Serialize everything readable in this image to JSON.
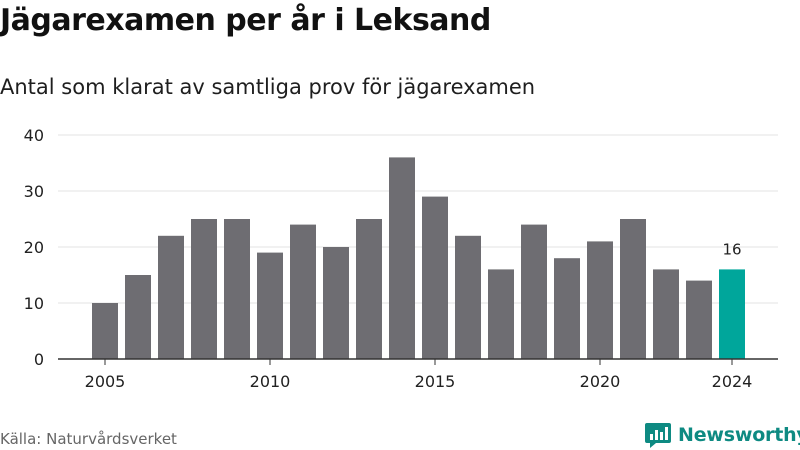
{
  "title": "Jägarexamen per år i Leksand",
  "subtitle": "Antal som klarat av samtliga prov för jägarexamen",
  "source": "Källa: Naturvårdsverket",
  "brand": {
    "name": "Newsworthy"
  },
  "colors": {
    "bar": "#6e6d72",
    "highlight": "#00a69b",
    "grid": "#e3e3e3",
    "axis": "#333333"
  },
  "chart_data": {
    "type": "bar",
    "x": [
      2005,
      2006,
      2007,
      2008,
      2009,
      2010,
      2011,
      2012,
      2013,
      2014,
      2015,
      2016,
      2017,
      2018,
      2019,
      2020,
      2021,
      2022,
      2023,
      2024
    ],
    "values": [
      10,
      15,
      22,
      25,
      25,
      19,
      24,
      20,
      25,
      36,
      29,
      22,
      16,
      24,
      18,
      21,
      25,
      16,
      14,
      16
    ],
    "ylim": [
      0,
      40
    ],
    "yticks": [
      0,
      10,
      20,
      30,
      40
    ],
    "xticks": [
      2005,
      2010,
      2015,
      2020,
      2024
    ],
    "highlight_index": 19,
    "highlight_label": "16",
    "grid": true
  }
}
